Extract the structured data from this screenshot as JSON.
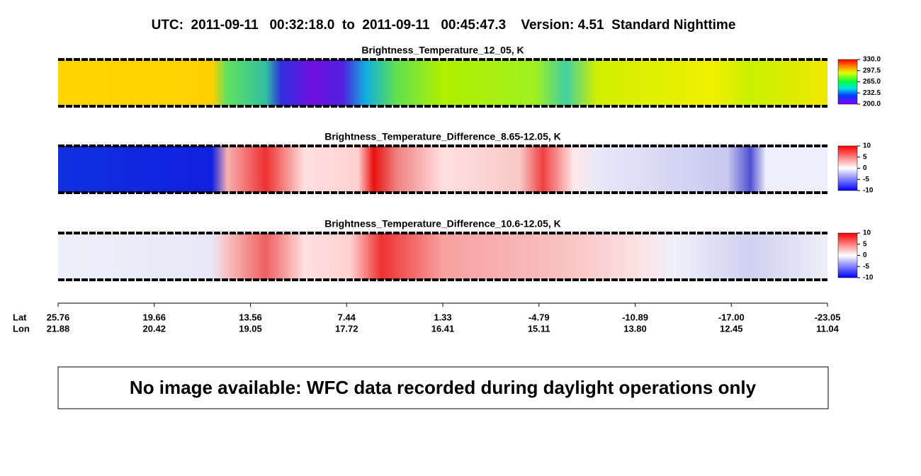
{
  "title": "UTC:  2011-09-11   00:32:18.0  to  2011-09-11   00:45:47.3    Version: 4.51  Standard Nighttime",
  "panels": [
    {
      "title": "Brightness_Temperature_12_05, K",
      "colorbar": {
        "lim": [
          200,
          330
        ],
        "ticks": [
          {
            "value": 330,
            "label": "330.0"
          },
          297.5,
          {
            "value": 265,
            "label": "265.0"
          },
          232.5,
          {
            "value": 200,
            "label": "200.0"
          }
        ]
      }
    },
    {
      "title": "Brightness_Temperature_Difference_8.65-12.05, K",
      "colorbar": {
        "lim": [
          -10,
          10
        ],
        "ticks": [
          10,
          5,
          0,
          -5,
          -10
        ]
      }
    },
    {
      "title": "Brightness_Temperature_Difference_10.6-12.05, K",
      "colorbar": {
        "lim": [
          -10,
          10
        ],
        "ticks": [
          10,
          5,
          0,
          -5,
          -10
        ]
      }
    }
  ],
  "axis": {
    "lat_label": "Lat",
    "lon_label": "Lon",
    "lat": [
      "25.76",
      "19.66",
      "13.56",
      "7.44",
      "1.33",
      "-4.79",
      "-10.89",
      "-17.00",
      "-23.05"
    ],
    "lon": [
      "21.88",
      "20.42",
      "19.05",
      "17.72",
      "16.41",
      "15.11",
      "13.80",
      "12.45",
      "11.04"
    ]
  },
  "notice": "No image available: WFC data recorded during daylight operations only"
}
